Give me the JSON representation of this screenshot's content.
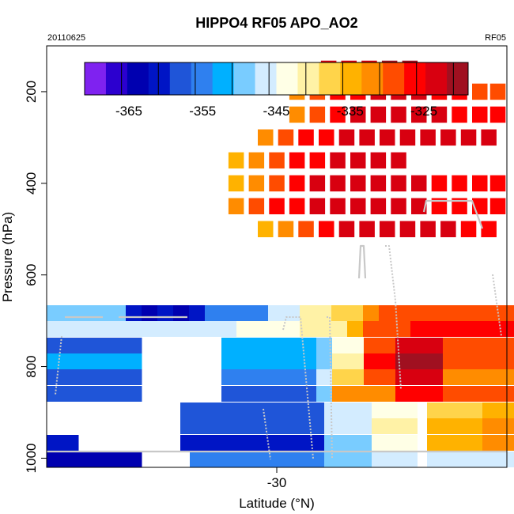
{
  "chart_data": {
    "type": "heatmap",
    "title": "HIPPO4 RF05 APO_AO2",
    "date_label": "20110625",
    "flight_label": "RF05",
    "xlabel": "Latitude (°N)",
    "ylabel": "Pressure (hPa)",
    "xlim": [
      -40.2,
      -19.8
    ],
    "ylim": [
      1020,
      100
    ],
    "x_ticks": [
      -30
    ],
    "x_tick_labels": [
      "-30"
    ],
    "y_ticks": [
      200,
      400,
      600,
      800,
      1000
    ],
    "y_tick_labels": [
      "200",
      "400",
      "600",
      "800",
      "1000"
    ],
    "colorbar": {
      "range": [
        -371,
        -319
      ],
      "ticks": [
        -365,
        -355,
        -345,
        -335,
        -325
      ],
      "tick_labels": [
        "-365",
        "-355",
        "-345",
        "-335",
        "-325"
      ],
      "colors": [
        "#7f22f0",
        "#2c00cf",
        "#0000b0",
        "#0015c5",
        "#1f55d8",
        "#2f80ef",
        "#00b0ff",
        "#79ccff",
        "#d3ecff",
        "#ffffe6",
        "#fff2a6",
        "#ffd44a",
        "#ffb200",
        "#ff8c00",
        "#ff4c00",
        "#ff0000",
        "#d80010",
        "#a01020"
      ]
    },
    "cells": [
      {
        "lat": -27.7,
        "p": 150,
        "v": -323
      },
      {
        "lat": -26.8,
        "p": 150,
        "v": -322
      },
      {
        "lat": -25.9,
        "p": 150,
        "v": -322
      },
      {
        "lat": -25.0,
        "p": 150,
        "v": -321
      },
      {
        "lat": -24.1,
        "p": 150,
        "v": -320
      },
      {
        "lat": -29.1,
        "p": 200,
        "v": -333
      },
      {
        "lat": -28.2,
        "p": 200,
        "v": -330
      },
      {
        "lat": -27.3,
        "p": 200,
        "v": -327
      },
      {
        "lat": -26.4,
        "p": 200,
        "v": -325
      },
      {
        "lat": -25.5,
        "p": 200,
        "v": -323
      },
      {
        "lat": -24.6,
        "p": 200,
        "v": -322
      },
      {
        "lat": -23.7,
        "p": 200,
        "v": -324
      },
      {
        "lat": -22.8,
        "p": 200,
        "v": -326
      },
      {
        "lat": -21.9,
        "p": 200,
        "v": -327
      },
      {
        "lat": -21.0,
        "p": 200,
        "v": -328
      },
      {
        "lat": -20.2,
        "p": 200,
        "v": -328
      },
      {
        "lat": -29.1,
        "p": 250,
        "v": -331
      },
      {
        "lat": -28.2,
        "p": 250,
        "v": -328
      },
      {
        "lat": -27.3,
        "p": 250,
        "v": -325
      },
      {
        "lat": -26.4,
        "p": 250,
        "v": -323
      },
      {
        "lat": -25.5,
        "p": 250,
        "v": -322
      },
      {
        "lat": -24.6,
        "p": 250,
        "v": -322
      },
      {
        "lat": -23.7,
        "p": 250,
        "v": -323
      },
      {
        "lat": -22.8,
        "p": 250,
        "v": -324
      },
      {
        "lat": -21.9,
        "p": 250,
        "v": -325
      },
      {
        "lat": -21.0,
        "p": 250,
        "v": -325
      },
      {
        "lat": -20.2,
        "p": 250,
        "v": -325
      },
      {
        "lat": -30.5,
        "p": 300,
        "v": -332
      },
      {
        "lat": -29.6,
        "p": 300,
        "v": -330
      },
      {
        "lat": -28.7,
        "p": 300,
        "v": -327
      },
      {
        "lat": -27.8,
        "p": 300,
        "v": -325
      },
      {
        "lat": -26.9,
        "p": 300,
        "v": -324
      },
      {
        "lat": -26.0,
        "p": 300,
        "v": -323
      },
      {
        "lat": -25.1,
        "p": 300,
        "v": -322
      },
      {
        "lat": -24.2,
        "p": 300,
        "v": -322
      },
      {
        "lat": -23.3,
        "p": 300,
        "v": -322
      },
      {
        "lat": -22.4,
        "p": 300,
        "v": -322
      },
      {
        "lat": -21.5,
        "p": 300,
        "v": -322
      },
      {
        "lat": -20.6,
        "p": 300,
        "v": -322
      },
      {
        "lat": -31.8,
        "p": 350,
        "v": -335
      },
      {
        "lat": -30.9,
        "p": 350,
        "v": -332
      },
      {
        "lat": -30.0,
        "p": 350,
        "v": -330
      },
      {
        "lat": -29.1,
        "p": 350,
        "v": -327
      },
      {
        "lat": -28.2,
        "p": 350,
        "v": -325
      },
      {
        "lat": -27.3,
        "p": 350,
        "v": -323
      },
      {
        "lat": -26.4,
        "p": 350,
        "v": -322
      },
      {
        "lat": -25.5,
        "p": 350,
        "v": -322
      },
      {
        "lat": -24.6,
        "p": 350,
        "v": -322
      },
      {
        "lat": -31.8,
        "p": 400,
        "v": -334
      },
      {
        "lat": -30.9,
        "p": 400,
        "v": -331
      },
      {
        "lat": -30.0,
        "p": 400,
        "v": -328
      },
      {
        "lat": -29.1,
        "p": 400,
        "v": -326
      },
      {
        "lat": -28.2,
        "p": 400,
        "v": -324
      },
      {
        "lat": -27.3,
        "p": 400,
        "v": -322
      },
      {
        "lat": -26.4,
        "p": 400,
        "v": -322
      },
      {
        "lat": -25.5,
        "p": 400,
        "v": -322
      },
      {
        "lat": -24.6,
        "p": 400,
        "v": -323
      },
      {
        "lat": -23.7,
        "p": 400,
        "v": -324
      },
      {
        "lat": -22.8,
        "p": 400,
        "v": -325
      },
      {
        "lat": -21.9,
        "p": 400,
        "v": -325
      },
      {
        "lat": -21.0,
        "p": 400,
        "v": -325
      },
      {
        "lat": -20.2,
        "p": 400,
        "v": -325
      },
      {
        "lat": -31.8,
        "p": 450,
        "v": -333
      },
      {
        "lat": -30.9,
        "p": 450,
        "v": -330
      },
      {
        "lat": -30.0,
        "p": 450,
        "v": -327
      },
      {
        "lat": -29.1,
        "p": 450,
        "v": -325
      },
      {
        "lat": -28.2,
        "p": 450,
        "v": -323
      },
      {
        "lat": -27.3,
        "p": 450,
        "v": -322
      },
      {
        "lat": -26.4,
        "p": 450,
        "v": -322
      },
      {
        "lat": -25.5,
        "p": 450,
        "v": -322
      },
      {
        "lat": -24.6,
        "p": 450,
        "v": -323
      },
      {
        "lat": -23.7,
        "p": 450,
        "v": -324
      },
      {
        "lat": -22.8,
        "p": 450,
        "v": -325
      },
      {
        "lat": -21.9,
        "p": 450,
        "v": -325
      },
      {
        "lat": -21.0,
        "p": 450,
        "v": -326
      },
      {
        "lat": -20.2,
        "p": 450,
        "v": -327
      },
      {
        "lat": -30.5,
        "p": 500,
        "v": -336
      },
      {
        "lat": -29.6,
        "p": 500,
        "v": -333
      },
      {
        "lat": -28.7,
        "p": 500,
        "v": -329
      },
      {
        "lat": -27.8,
        "p": 500,
        "v": -326
      },
      {
        "lat": -26.9,
        "p": 500,
        "v": -323
      },
      {
        "lat": -26.0,
        "p": 500,
        "v": -322
      },
      {
        "lat": -25.1,
        "p": 500,
        "v": -322
      },
      {
        "lat": -24.2,
        "p": 500,
        "v": -322
      },
      {
        "lat": -23.3,
        "p": 500,
        "v": -323
      },
      {
        "lat": -22.4,
        "p": 500,
        "v": -324
      },
      {
        "lat": -21.5,
        "p": 500,
        "v": -325
      },
      {
        "lat": -20.6,
        "p": 500,
        "v": -326
      }
    ]
  }
}
